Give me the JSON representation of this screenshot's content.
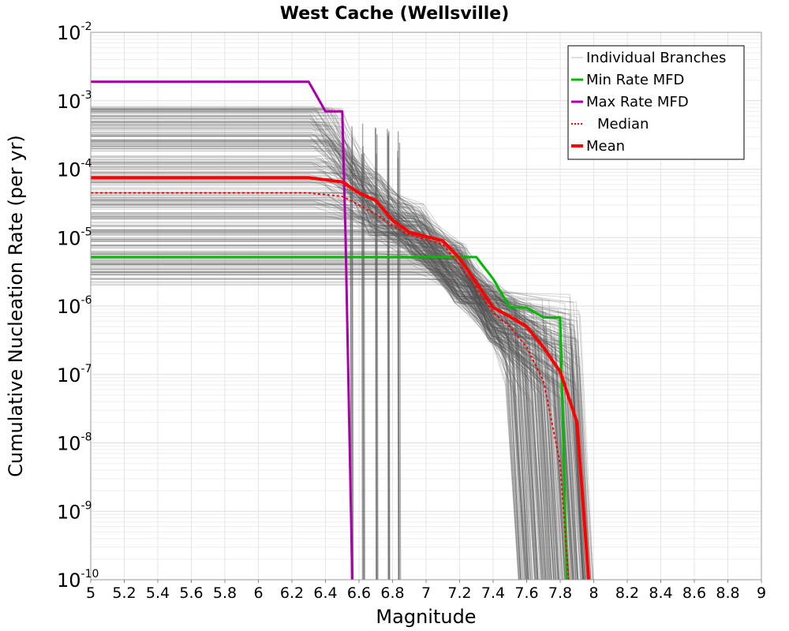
{
  "chart_data": {
    "type": "line",
    "title": "West Cache (Wellsville)",
    "xlabel": "Magnitude",
    "ylabel": "Cumulative Nucleation Rate (per yr)",
    "xlim": [
      5,
      9
    ],
    "ylim": [
      1e-10,
      0.01
    ],
    "yscale": "log",
    "grid": true,
    "legend_position": "top-right",
    "x_ticks": [
      "5",
      "5.2",
      "5.4",
      "5.6",
      "5.8",
      "6",
      "6.2",
      "6.4",
      "6.6",
      "6.8",
      "7",
      "7.2",
      "7.4",
      "7.6",
      "7.8",
      "8",
      "8.2",
      "8.4",
      "8.6",
      "8.8",
      "9"
    ],
    "y_ticks": [
      {
        "base": "10",
        "exp": "-10"
      },
      {
        "base": "10",
        "exp": "-9"
      },
      {
        "base": "10",
        "exp": "-8"
      },
      {
        "base": "10",
        "exp": "-7"
      },
      {
        "base": "10",
        "exp": "-6"
      },
      {
        "base": "10",
        "exp": "-5"
      },
      {
        "base": "10",
        "exp": "-4"
      },
      {
        "base": "10",
        "exp": "-3"
      },
      {
        "base": "10",
        "exp": "-2"
      }
    ],
    "colors": {
      "individual": "#555555",
      "min": "#00bb00",
      "max": "#aa00aa",
      "median": "#ff0000",
      "mean": "#ff0000"
    },
    "series": [
      {
        "name": "Min Rate MFD",
        "x": [
          5.0,
          7.3,
          7.4,
          7.5,
          7.6,
          7.7,
          7.8,
          7.84
        ],
        "y": [
          5.2e-06,
          5.2e-06,
          2.5e-06,
          9.5e-07,
          9.5e-07,
          6.8e-07,
          6.8e-07,
          1e-10
        ]
      },
      {
        "name": "Max Rate MFD",
        "x": [
          5.0,
          6.3,
          6.4,
          6.45,
          6.5,
          6.52,
          6.56
        ],
        "y": [
          0.0019,
          0.0019,
          0.0007,
          0.0007,
          0.0007,
          1e-05,
          1e-10
        ]
      },
      {
        "name": "Median",
        "x": [
          5.0,
          6.3,
          6.5,
          6.6,
          6.7,
          6.8,
          6.9,
          7.1,
          7.2,
          7.3,
          7.4,
          7.5,
          7.6,
          7.7,
          7.8,
          7.85
        ],
        "y": [
          4.5e-05,
          4.5e-05,
          4e-05,
          3e-05,
          2.2e-05,
          1.5e-05,
          1.1e-05,
          8e-06,
          4e-06,
          1.8e-06,
          8e-07,
          5e-07,
          2.5e-07,
          8e-08,
          5e-09,
          1e-10
        ]
      },
      {
        "name": "Mean",
        "x": [
          5.0,
          6.3,
          6.5,
          6.6,
          6.7,
          6.8,
          6.9,
          7.1,
          7.2,
          7.3,
          7.4,
          7.5,
          7.6,
          7.7,
          7.8,
          7.9,
          7.97
        ],
        "y": [
          7.5e-05,
          7.5e-05,
          6.5e-05,
          4.5e-05,
          3.5e-05,
          1.8e-05,
          1.2e-05,
          9e-06,
          5e-06,
          2.2e-06,
          9.5e-07,
          7e-07,
          5e-07,
          2.5e-07,
          1.1e-07,
          2e-08,
          1e-10
        ]
      }
    ],
    "legend": [
      {
        "label": "Individual Branches",
        "style": "thin-gray"
      },
      {
        "label": "Min Rate MFD",
        "style": "solid-green"
      },
      {
        "label": "Max Rate MFD",
        "style": "solid-purple"
      },
      {
        "label": "Median",
        "style": "dotted-red"
      },
      {
        "label": "Mean",
        "style": "thick-red"
      }
    ],
    "individual_branches": {
      "description_count": 300
    }
  }
}
